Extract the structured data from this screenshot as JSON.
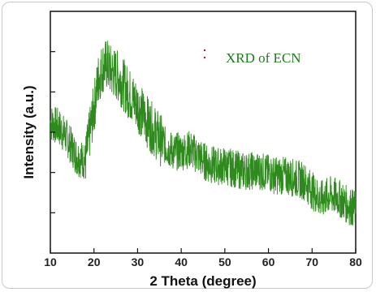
{
  "chart_data": {
    "type": "line",
    "xlabel": "2 Theta (degree)",
    "ylabel": "Intensity (a.u.)",
    "xlim": [
      10,
      80
    ],
    "xticks": [
      10,
      20,
      30,
      40,
      50,
      60,
      70,
      80
    ],
    "yticks_labeled": false,
    "ylim": [
      0,
      1
    ],
    "grid": false,
    "legend_position": "top-right",
    "series": [
      {
        "name": "XRD of ECN",
        "color": "#2f8a1e",
        "x": [
          10,
          12,
          14,
          16,
          18,
          20,
          21,
          22,
          23,
          24,
          25,
          26,
          28,
          30,
          32,
          34,
          36,
          38,
          40,
          42,
          44,
          46,
          48,
          50,
          52,
          54,
          56,
          58,
          60,
          62,
          64,
          66,
          68,
          70,
          72,
          74,
          76,
          78,
          80
        ],
        "y": [
          0.54,
          0.52,
          0.47,
          0.4,
          0.38,
          0.6,
          0.72,
          0.77,
          0.78,
          0.75,
          0.74,
          0.72,
          0.66,
          0.61,
          0.55,
          0.5,
          0.45,
          0.42,
          0.42,
          0.43,
          0.4,
          0.37,
          0.36,
          0.36,
          0.35,
          0.34,
          0.34,
          0.34,
          0.33,
          0.32,
          0.32,
          0.31,
          0.3,
          0.26,
          0.22,
          0.24,
          0.23,
          0.2,
          0.18
        ]
      }
    ]
  },
  "legend": {
    "label": "XRD of ECN",
    "marker_color": "#8b2a1a"
  }
}
